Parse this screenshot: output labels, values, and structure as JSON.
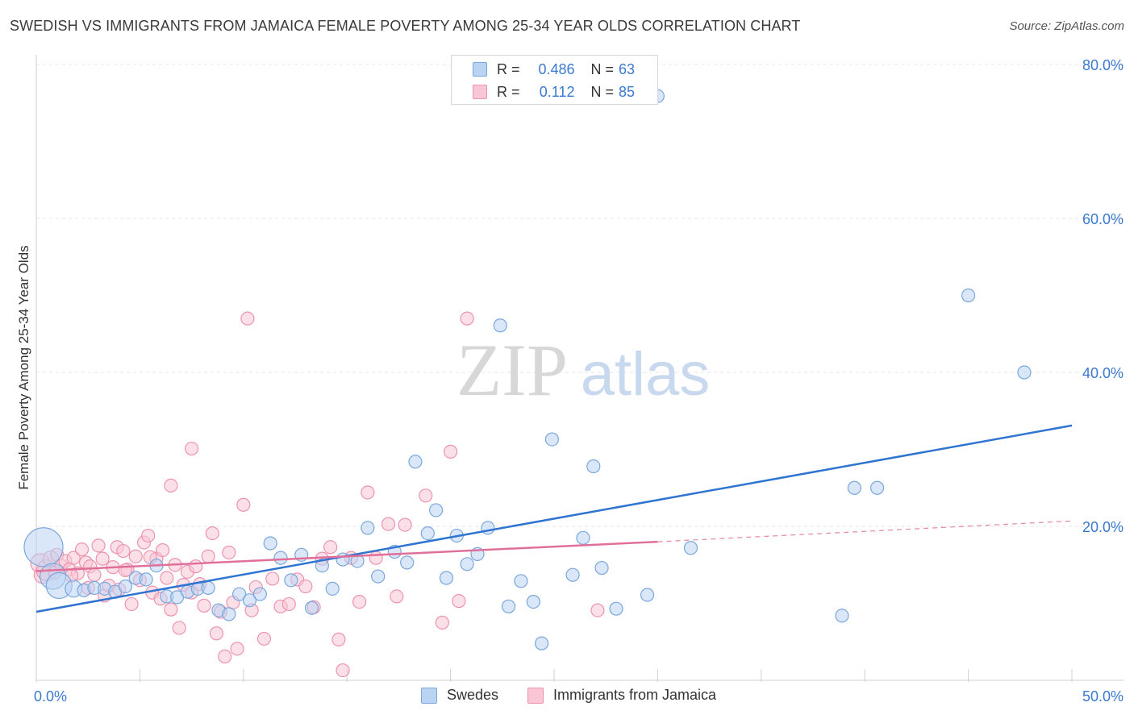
{
  "header": {
    "title": "SWEDISH VS IMMIGRANTS FROM JAMAICA FEMALE POVERTY AMONG 25-34 YEAR OLDS CORRELATION CHART",
    "source": "Source: ZipAtlas.com"
  },
  "watermark": {
    "part1": "ZIP",
    "part2": "atlas"
  },
  "legend": {
    "r_label": "R =",
    "n_label": "N =",
    "rows": [
      {
        "r": "0.486",
        "n": "63"
      },
      {
        "r": "0.112",
        "n": "85"
      }
    ]
  },
  "colors": {
    "blue_fill": "#b9d4f3",
    "blue_stroke": "#7aa7dc",
    "blue_line": "#2f74d0",
    "pink_fill": "#f9c6d6",
    "pink_stroke": "#ec93b1",
    "pink_line": "#e0709a",
    "axis_text": "#3b78d0"
  },
  "chart_data": {
    "type": "scatter",
    "title": "SWEDISH VS IMMIGRANTS FROM JAMAICA FEMALE POVERTY AMONG 25-34 YEAR OLDS CORRELATION CHART",
    "xlabel": "",
    "ylabel": "Female Poverty Among 25-34 Year Olds",
    "xlim": [
      0,
      50
    ],
    "ylim": [
      0,
      80
    ],
    "x_tick_labels": [
      "0.0%",
      "50.0%"
    ],
    "y_ticks": [
      20,
      40,
      60,
      80
    ],
    "y_tick_labels": [
      "20.0%",
      "40.0%",
      "60.0%",
      "80.0%"
    ],
    "grid": true,
    "legend_position": "top-center",
    "series": [
      {
        "name": "Swedes",
        "color": "#2f74d0",
        "R": 0.486,
        "N": 63,
        "trend": {
          "x": [
            0,
            50
          ],
          "y": [
            8.9,
            33.1
          ]
        },
        "points": [
          {
            "x": 0.35,
            "y": 17.3,
            "s": 3
          },
          {
            "x": 0.8,
            "y": 13.5,
            "s": 2
          },
          {
            "x": 1.1,
            "y": 12.3,
            "s": 2
          },
          {
            "x": 1.8,
            "y": 11.9,
            "s": 1.3
          },
          {
            "x": 2.3,
            "y": 11.7,
            "s": 1
          },
          {
            "x": 2.8,
            "y": 12.0,
            "s": 1
          },
          {
            "x": 3.3,
            "y": 11.9,
            "s": 1
          },
          {
            "x": 3.8,
            "y": 11.5,
            "s": 1
          },
          {
            "x": 4.3,
            "y": 12.2,
            "s": 1
          },
          {
            "x": 4.8,
            "y": 13.3,
            "s": 1
          },
          {
            "x": 5.3,
            "y": 13.1,
            "s": 1
          },
          {
            "x": 5.8,
            "y": 14.9,
            "s": 1
          },
          {
            "x": 6.3,
            "y": 10.9,
            "s": 1
          },
          {
            "x": 6.8,
            "y": 10.8,
            "s": 1
          },
          {
            "x": 7.3,
            "y": 11.5,
            "s": 1
          },
          {
            "x": 7.8,
            "y": 11.9,
            "s": 1
          },
          {
            "x": 8.3,
            "y": 12.0,
            "s": 1
          },
          {
            "x": 8.8,
            "y": 9.1,
            "s": 1
          },
          {
            "x": 9.3,
            "y": 8.6,
            "s": 1
          },
          {
            "x": 9.8,
            "y": 11.2,
            "s": 1
          },
          {
            "x": 10.3,
            "y": 10.4,
            "s": 1
          },
          {
            "x": 10.8,
            "y": 11.2,
            "s": 1
          },
          {
            "x": 11.3,
            "y": 17.8,
            "s": 1
          },
          {
            "x": 11.8,
            "y": 15.9,
            "s": 1
          },
          {
            "x": 12.3,
            "y": 13.0,
            "s": 1
          },
          {
            "x": 12.8,
            "y": 16.3,
            "s": 1
          },
          {
            "x": 13.3,
            "y": 9.4,
            "s": 1
          },
          {
            "x": 13.8,
            "y": 14.9,
            "s": 1
          },
          {
            "x": 14.3,
            "y": 11.9,
            "s": 1
          },
          {
            "x": 14.8,
            "y": 15.7,
            "s": 1
          },
          {
            "x": 15.5,
            "y": 15.5,
            "s": 1
          },
          {
            "x": 16.0,
            "y": 19.8,
            "s": 1
          },
          {
            "x": 16.5,
            "y": 13.5,
            "s": 1
          },
          {
            "x": 17.3,
            "y": 16.7,
            "s": 1
          },
          {
            "x": 17.9,
            "y": 15.3,
            "s": 1
          },
          {
            "x": 18.3,
            "y": 28.4,
            "s": 1
          },
          {
            "x": 18.9,
            "y": 19.1,
            "s": 1
          },
          {
            "x": 19.3,
            "y": 22.1,
            "s": 1
          },
          {
            "x": 19.8,
            "y": 13.3,
            "s": 1
          },
          {
            "x": 20.3,
            "y": 18.8,
            "s": 1
          },
          {
            "x": 20.8,
            "y": 15.1,
            "s": 1
          },
          {
            "x": 21.3,
            "y": 16.4,
            "s": 1
          },
          {
            "x": 21.8,
            "y": 19.8,
            "s": 1
          },
          {
            "x": 22.4,
            "y": 46.1,
            "s": 1
          },
          {
            "x": 22.8,
            "y": 9.6,
            "s": 1
          },
          {
            "x": 23.4,
            "y": 12.9,
            "s": 1
          },
          {
            "x": 24.0,
            "y": 10.2,
            "s": 1
          },
          {
            "x": 24.4,
            "y": 4.8,
            "s": 1
          },
          {
            "x": 24.9,
            "y": 31.3,
            "s": 1
          },
          {
            "x": 25.9,
            "y": 13.7,
            "s": 1
          },
          {
            "x": 26.4,
            "y": 18.5,
            "s": 1
          },
          {
            "x": 26.9,
            "y": 27.8,
            "s": 1
          },
          {
            "x": 27.3,
            "y": 14.6,
            "s": 1
          },
          {
            "x": 28.0,
            "y": 9.3,
            "s": 1
          },
          {
            "x": 29.5,
            "y": 11.1,
            "s": 1
          },
          {
            "x": 31.6,
            "y": 17.2,
            "s": 1
          },
          {
            "x": 30.0,
            "y": 75.9,
            "s": 1
          },
          {
            "x": 38.9,
            "y": 8.4,
            "s": 1
          },
          {
            "x": 39.5,
            "y": 25.0,
            "s": 1
          },
          {
            "x": 40.6,
            "y": 25.0,
            "s": 1
          },
          {
            "x": 45.0,
            "y": 50.0,
            "s": 1
          },
          {
            "x": 47.7,
            "y": 40.0,
            "s": 1
          }
        ]
      },
      {
        "name": "Immigrants from Jamaica",
        "color": "#e0709a",
        "R": 0.112,
        "N": 85,
        "trend": {
          "x": [
            0,
            30
          ],
          "y": [
            14.2,
            18.0
          ]
        },
        "trend_dashed": {
          "x": [
            30,
            50
          ],
          "y": [
            18.0,
            20.7
          ]
        },
        "points": [
          {
            "x": 0.2,
            "y": 15.2,
            "s": 1.5
          },
          {
            "x": 0.3,
            "y": 13.7,
            "s": 1.3
          },
          {
            "x": 0.5,
            "y": 14.3,
            "s": 1.6
          },
          {
            "x": 0.7,
            "y": 15.8,
            "s": 1.2
          },
          {
            "x": 0.9,
            "y": 14.0,
            "s": 1
          },
          {
            "x": 1.0,
            "y": 16.3,
            "s": 1
          },
          {
            "x": 1.2,
            "y": 14.9,
            "s": 1
          },
          {
            "x": 1.4,
            "y": 15.5,
            "s": 1
          },
          {
            "x": 1.6,
            "y": 14.4,
            "s": 1
          },
          {
            "x": 1.8,
            "y": 15.9,
            "s": 1
          },
          {
            "x": 2.0,
            "y": 13.9,
            "s": 1
          },
          {
            "x": 2.2,
            "y": 17.0,
            "s": 1
          },
          {
            "x": 2.4,
            "y": 15.3,
            "s": 1
          },
          {
            "x": 2.6,
            "y": 14.8,
            "s": 1
          },
          {
            "x": 2.8,
            "y": 13.7,
            "s": 1
          },
          {
            "x": 3.0,
            "y": 17.5,
            "s": 1
          },
          {
            "x": 3.2,
            "y": 15.8,
            "s": 1
          },
          {
            "x": 3.3,
            "y": 11.0,
            "s": 1
          },
          {
            "x": 3.5,
            "y": 12.3,
            "s": 1
          },
          {
            "x": 3.7,
            "y": 14.7,
            "s": 1
          },
          {
            "x": 3.9,
            "y": 17.3,
            "s": 1
          },
          {
            "x": 4.0,
            "y": 11.8,
            "s": 1
          },
          {
            "x": 4.2,
            "y": 16.8,
            "s": 1
          },
          {
            "x": 4.4,
            "y": 14.4,
            "s": 1
          },
          {
            "x": 4.6,
            "y": 9.9,
            "s": 1
          },
          {
            "x": 4.8,
            "y": 16.1,
            "s": 1
          },
          {
            "x": 5.0,
            "y": 13.0,
            "s": 1
          },
          {
            "x": 5.2,
            "y": 17.9,
            "s": 1
          },
          {
            "x": 5.4,
            "y": 18.8,
            "s": 1
          },
          {
            "x": 5.6,
            "y": 11.4,
            "s": 1
          },
          {
            "x": 5.8,
            "y": 15.8,
            "s": 1
          },
          {
            "x": 6.0,
            "y": 10.6,
            "s": 1
          },
          {
            "x": 6.1,
            "y": 16.9,
            "s": 1
          },
          {
            "x": 6.3,
            "y": 13.3,
            "s": 1
          },
          {
            "x": 6.5,
            "y": 9.2,
            "s": 1
          },
          {
            "x": 6.7,
            "y": 15.0,
            "s": 1
          },
          {
            "x": 6.9,
            "y": 6.8,
            "s": 1
          },
          {
            "x": 7.1,
            "y": 12.4,
            "s": 1
          },
          {
            "x": 7.3,
            "y": 14.1,
            "s": 1
          },
          {
            "x": 7.5,
            "y": 11.4,
            "s": 1
          },
          {
            "x": 7.7,
            "y": 14.8,
            "s": 1
          },
          {
            "x": 7.9,
            "y": 12.5,
            "s": 1
          },
          {
            "x": 8.1,
            "y": 9.7,
            "s": 1
          },
          {
            "x": 8.3,
            "y": 16.1,
            "s": 1
          },
          {
            "x": 8.5,
            "y": 19.1,
            "s": 1
          },
          {
            "x": 8.7,
            "y": 6.1,
            "s": 1
          },
          {
            "x": 6.5,
            "y": 25.3,
            "s": 1
          },
          {
            "x": 7.5,
            "y": 30.1,
            "s": 1
          },
          {
            "x": 8.9,
            "y": 8.9,
            "s": 1
          },
          {
            "x": 9.1,
            "y": 3.1,
            "s": 1
          },
          {
            "x": 9.3,
            "y": 16.6,
            "s": 1
          },
          {
            "x": 9.5,
            "y": 10.1,
            "s": 1
          },
          {
            "x": 9.7,
            "y": 4.1,
            "s": 1
          },
          {
            "x": 10.0,
            "y": 22.8,
            "s": 1
          },
          {
            "x": 10.2,
            "y": 47.0,
            "s": 1
          },
          {
            "x": 10.4,
            "y": 9.1,
            "s": 1
          },
          {
            "x": 10.6,
            "y": 12.1,
            "s": 1
          },
          {
            "x": 11.0,
            "y": 5.4,
            "s": 1
          },
          {
            "x": 11.4,
            "y": 13.2,
            "s": 1
          },
          {
            "x": 11.8,
            "y": 9.6,
            "s": 1
          },
          {
            "x": 12.2,
            "y": 9.9,
            "s": 1
          },
          {
            "x": 12.6,
            "y": 13.1,
            "s": 1
          },
          {
            "x": 13.0,
            "y": 12.2,
            "s": 1
          },
          {
            "x": 13.4,
            "y": 9.5,
            "s": 1
          },
          {
            "x": 13.8,
            "y": 15.8,
            "s": 1
          },
          {
            "x": 14.2,
            "y": 17.3,
            "s": 1
          },
          {
            "x": 14.6,
            "y": 5.3,
            "s": 1
          },
          {
            "x": 14.8,
            "y": 1.3,
            "s": 1
          },
          {
            "x": 15.2,
            "y": 15.9,
            "s": 1
          },
          {
            "x": 15.6,
            "y": 10.2,
            "s": 1
          },
          {
            "x": 16.0,
            "y": 24.4,
            "s": 1
          },
          {
            "x": 16.4,
            "y": 15.9,
            "s": 1
          },
          {
            "x": 17.0,
            "y": 20.3,
            "s": 1
          },
          {
            "x": 17.4,
            "y": 10.9,
            "s": 1
          },
          {
            "x": 17.8,
            "y": 20.2,
            "s": 1
          },
          {
            "x": 18.8,
            "y": 24.0,
            "s": 1
          },
          {
            "x": 19.6,
            "y": 7.5,
            "s": 1
          },
          {
            "x": 20.0,
            "y": 29.7,
            "s": 1
          },
          {
            "x": 20.4,
            "y": 10.3,
            "s": 1
          },
          {
            "x": 20.8,
            "y": 47.0,
            "s": 1
          },
          {
            "x": 5.5,
            "y": 16.0,
            "s": 1
          },
          {
            "x": 4.3,
            "y": 14.3,
            "s": 1
          },
          {
            "x": 2.5,
            "y": 12.0,
            "s": 1
          },
          {
            "x": 27.1,
            "y": 9.1,
            "s": 1
          },
          {
            "x": 1.7,
            "y": 13.6,
            "s": 1
          }
        ]
      }
    ]
  }
}
